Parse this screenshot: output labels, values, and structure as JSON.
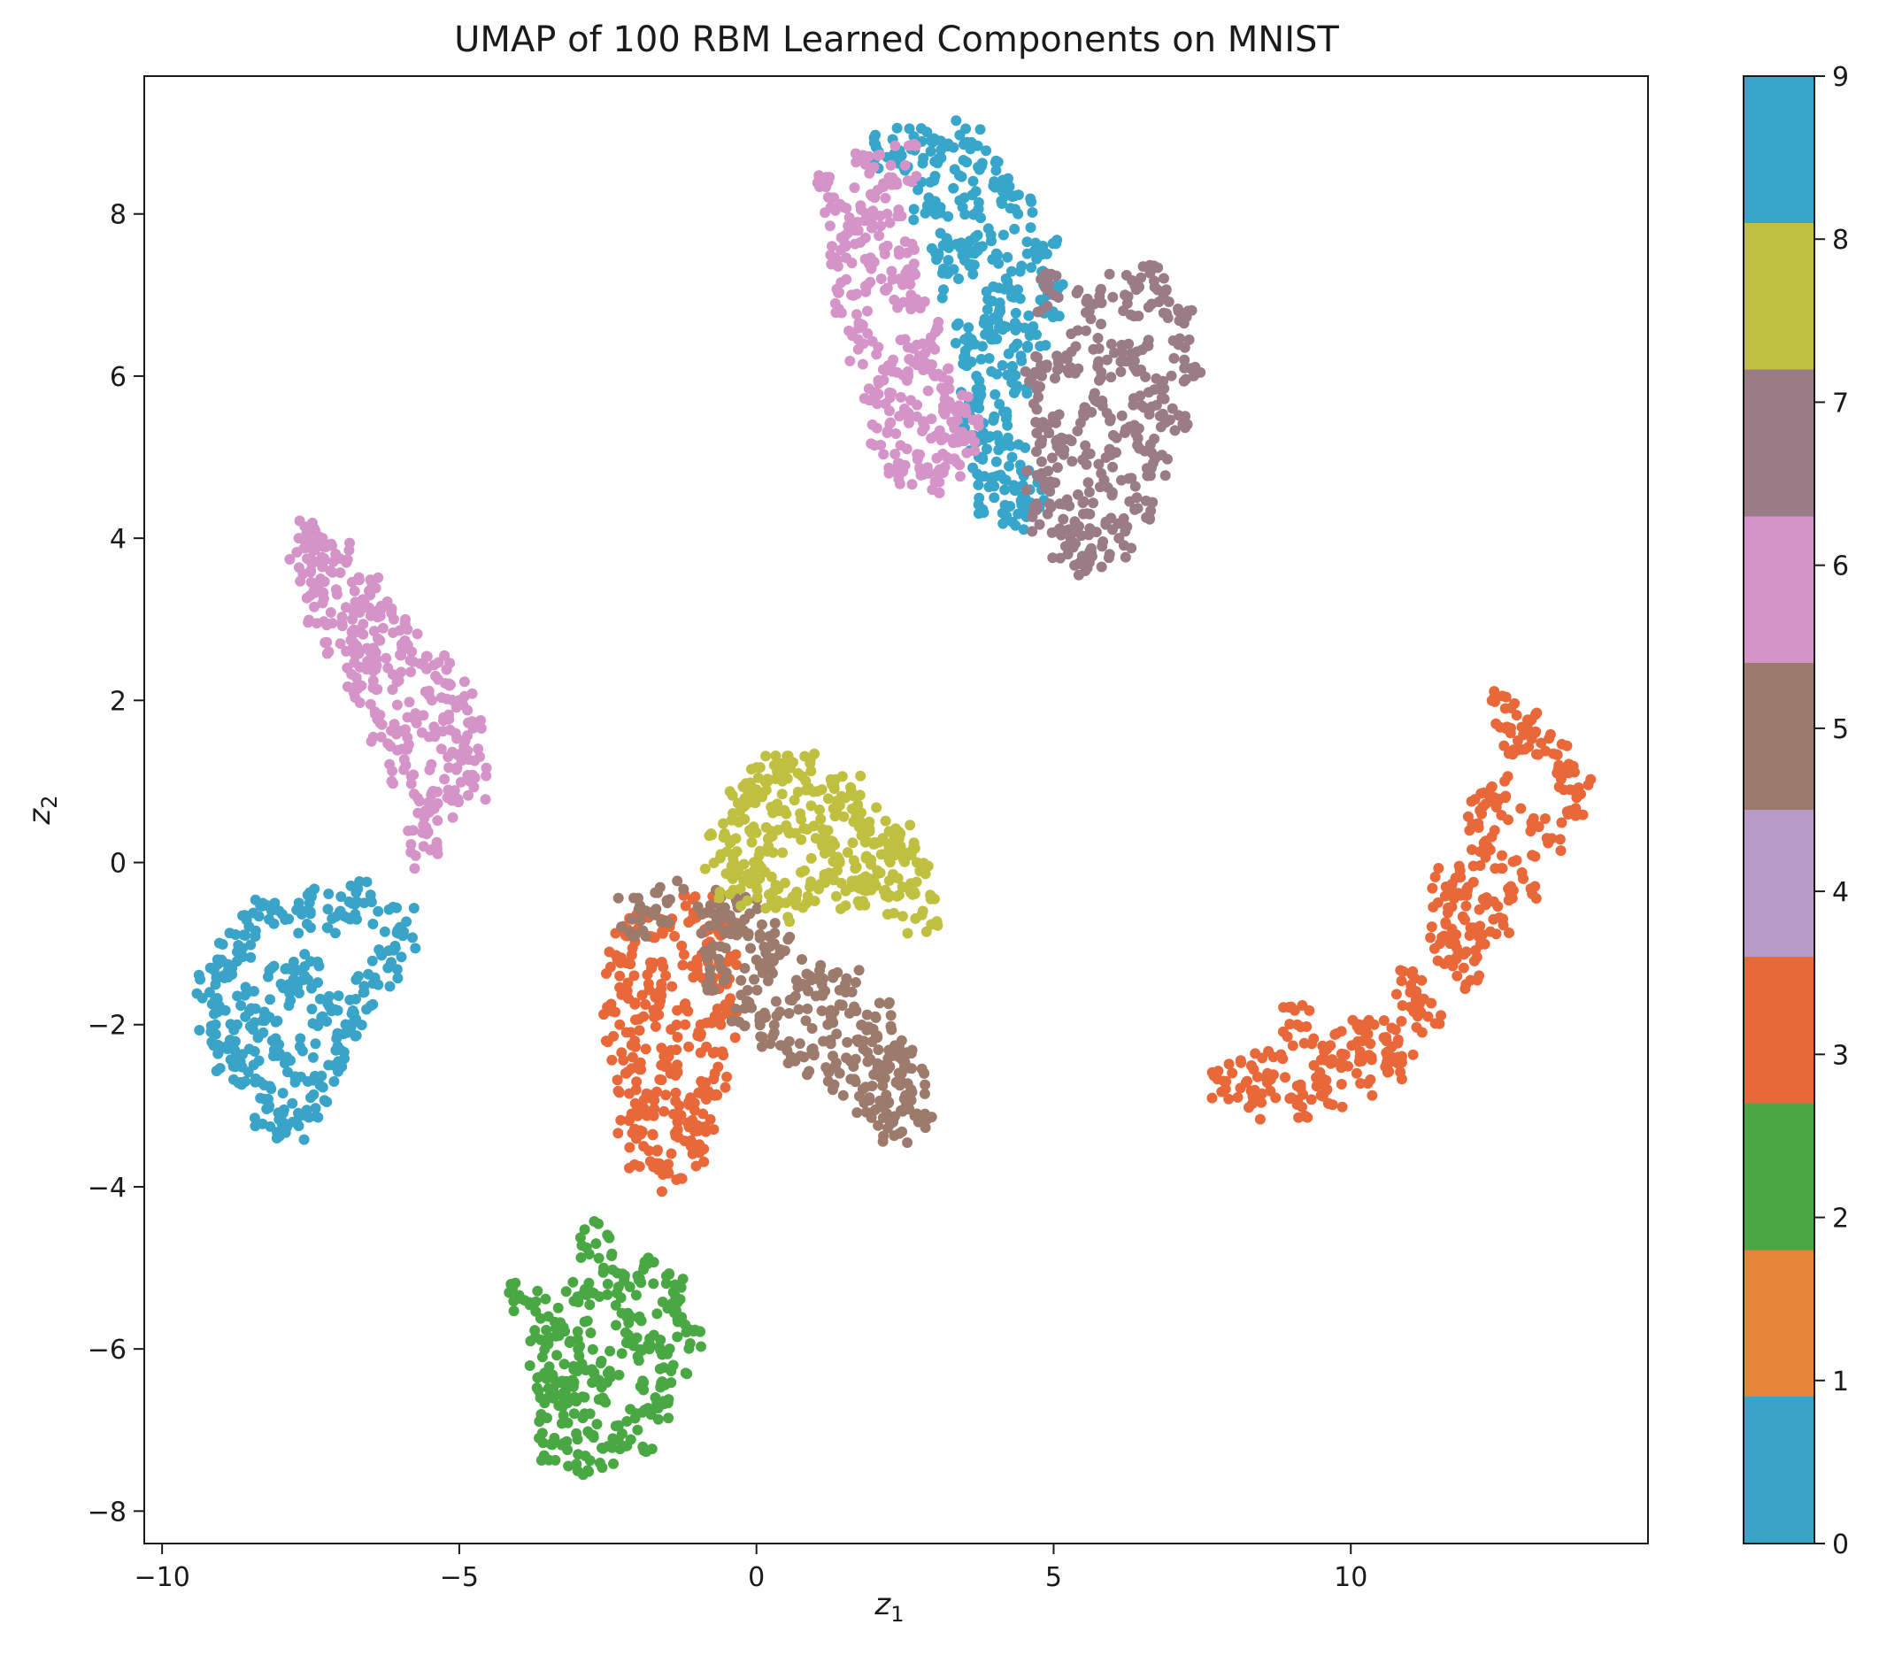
{
  "chart_data": {
    "type": "scatter",
    "title": "UMAP of 100 RBM Learned Components on MNIST",
    "xlabel": "z",
    "xlabel_sub": "1",
    "ylabel": "z",
    "ylabel_sub": "2",
    "xlim": [
      -10.3,
      15
    ],
    "ylim": [
      -8.4,
      9.7
    ],
    "xticks": [
      {
        "value": -10,
        "label": "−10"
      },
      {
        "value": -5,
        "label": "−5"
      },
      {
        "value": 0,
        "label": "0"
      },
      {
        "value": 5,
        "label": "5"
      },
      {
        "value": 10,
        "label": "10"
      }
    ],
    "yticks": [
      {
        "value": -8,
        "label": "−8"
      },
      {
        "value": -6,
        "label": "−6"
      },
      {
        "value": -4,
        "label": "−4"
      },
      {
        "value": -2,
        "label": "−2"
      },
      {
        "value": 0,
        "label": "0"
      },
      {
        "value": 2,
        "label": "2"
      },
      {
        "value": 4,
        "label": "4"
      },
      {
        "value": 6,
        "label": "6"
      },
      {
        "value": 8,
        "label": "8"
      }
    ],
    "grid": false,
    "colorbar": {
      "range": [
        0,
        9
      ],
      "ticks": [
        "0",
        "1",
        "2",
        "3",
        "4",
        "5",
        "6",
        "7",
        "8",
        "9"
      ],
      "colors": [
        "#3aa4c8",
        "#e8843a",
        "#4aa844",
        "#e8683a",
        "#b79ac8",
        "#9c7a6c",
        "#d494c8",
        "#9a7c86",
        "#c0c040",
        "#37a6ca"
      ]
    },
    "clusters": [
      {
        "label": 0,
        "color": "#3aa4c8",
        "points": [
          [
            -9.2,
            -1.6
          ],
          [
            -9.0,
            -1.2
          ],
          [
            -8.6,
            -0.9
          ],
          [
            -8.2,
            -0.7
          ],
          [
            -7.6,
            -0.6
          ],
          [
            -7.0,
            -0.6
          ],
          [
            -6.6,
            -0.5
          ],
          [
            -6.0,
            -0.8
          ],
          [
            -6.2,
            -1.3
          ],
          [
            -6.6,
            -1.6
          ],
          [
            -6.9,
            -2.1
          ],
          [
            -7.2,
            -2.5
          ],
          [
            -7.5,
            -2.9
          ],
          [
            -7.8,
            -3.2
          ],
          [
            -8.2,
            -3.0
          ],
          [
            -8.6,
            -2.7
          ],
          [
            -8.9,
            -2.3
          ],
          [
            -9.1,
            -2.0
          ],
          [
            -8.5,
            -1.8
          ],
          [
            -8.0,
            -1.5
          ],
          [
            -7.6,
            -1.4
          ],
          [
            -7.3,
            -1.9
          ],
          [
            -7.9,
            -2.4
          ],
          [
            -8.3,
            -2.1
          ]
        ]
      },
      {
        "label": 6,
        "color": "#d494c8",
        "points": [
          [
            -7.7,
            4.0
          ],
          [
            -7.3,
            3.9
          ],
          [
            -6.9,
            3.7
          ],
          [
            -6.5,
            3.3
          ],
          [
            -6.1,
            3.0
          ],
          [
            -5.8,
            2.6
          ],
          [
            -5.4,
            2.3
          ],
          [
            -5.0,
            2.0
          ],
          [
            -4.9,
            1.5
          ],
          [
            -4.8,
            1.0
          ],
          [
            -5.2,
            0.8
          ],
          [
            -5.6,
            0.6
          ],
          [
            -5.6,
            0.2
          ],
          [
            -5.9,
            1.2
          ],
          [
            -6.3,
            1.7
          ],
          [
            -6.7,
            2.2
          ],
          [
            -7.0,
            2.7
          ],
          [
            -7.3,
            3.2
          ],
          [
            -7.5,
            3.6
          ],
          [
            -6.8,
            3.0
          ],
          [
            -6.2,
            2.4
          ],
          [
            -5.7,
            1.8
          ],
          [
            -5.3,
            1.4
          ],
          [
            -6.5,
            2.6
          ]
        ]
      },
      {
        "label": 2,
        "color": "#4aa844",
        "points": [
          [
            -3.5,
            -5.6
          ],
          [
            -3.0,
            -5.4
          ],
          [
            -2.5,
            -5.2
          ],
          [
            -2.0,
            -5.1
          ],
          [
            -1.4,
            -5.3
          ],
          [
            -1.2,
            -5.7
          ],
          [
            -1.4,
            -6.2
          ],
          [
            -1.7,
            -6.6
          ],
          [
            -2.0,
            -7.0
          ],
          [
            -2.5,
            -7.2
          ],
          [
            -3.0,
            -7.3
          ],
          [
            -3.4,
            -7.1
          ],
          [
            -3.5,
            -6.6
          ],
          [
            -3.6,
            -6.1
          ],
          [
            -3.0,
            -6.0
          ],
          [
            -2.5,
            -6.3
          ],
          [
            -2.2,
            -5.8
          ],
          [
            -1.8,
            -6.0
          ],
          [
            -2.8,
            -6.8
          ],
          [
            -3.2,
            -6.4
          ],
          [
            -2.7,
            -4.7
          ],
          [
            -3.9,
            -5.4
          ]
        ]
      },
      {
        "label": 3,
        "color": "#e8683a",
        "points": [
          [
            -2.2,
            -0.9
          ],
          [
            -1.6,
            -0.7
          ],
          [
            -1.0,
            -0.6
          ],
          [
            -0.6,
            -0.9
          ],
          [
            -0.5,
            -1.5
          ],
          [
            -0.6,
            -2.0
          ],
          [
            -0.7,
            -2.6
          ],
          [
            -0.9,
            -3.1
          ],
          [
            -1.1,
            -3.5
          ],
          [
            -1.5,
            -3.8
          ],
          [
            -1.9,
            -3.5
          ],
          [
            -2.1,
            -3.1
          ],
          [
            -2.2,
            -2.6
          ],
          [
            -2.3,
            -2.0
          ],
          [
            -2.3,
            -1.4
          ],
          [
            -1.6,
            -1.5
          ],
          [
            -1.2,
            -2.0
          ],
          [
            -1.6,
            -2.5
          ],
          [
            -1.3,
            -3.0
          ],
          [
            -1.8,
            -2.9
          ],
          [
            -1.0,
            -1.2
          ],
          [
            -1.9,
            -1.9
          ]
        ]
      },
      {
        "label": 3,
        "color": "#e8683a",
        "points": [
          [
            7.9,
            -2.7
          ],
          [
            8.4,
            -2.9
          ],
          [
            9.0,
            -2.9
          ],
          [
            9.6,
            -2.8
          ],
          [
            10.1,
            -2.6
          ],
          [
            10.6,
            -2.2
          ],
          [
            11.0,
            -1.6
          ],
          [
            11.5,
            -1.0
          ],
          [
            11.9,
            -0.4
          ],
          [
            12.3,
            0.2
          ],
          [
            12.6,
            0.8
          ],
          [
            12.8,
            1.4
          ],
          [
            12.6,
            1.9
          ],
          [
            13.1,
            1.6
          ],
          [
            13.5,
            1.2
          ],
          [
            13.8,
            0.8
          ],
          [
            13.3,
            0.3
          ],
          [
            12.9,
            -0.2
          ],
          [
            12.4,
            -0.7
          ],
          [
            11.9,
            -1.3
          ],
          [
            11.3,
            -1.9
          ],
          [
            10.8,
            -2.4
          ],
          [
            10.2,
            -2.2
          ],
          [
            9.6,
            -2.3
          ],
          [
            9.1,
            -2.0
          ],
          [
            8.6,
            -2.6
          ],
          [
            12.0,
            -0.9
          ],
          [
            11.6,
            -0.3
          ],
          [
            12.2,
            0.6
          ]
        ]
      },
      {
        "label": 5,
        "color": "#9c7a6c",
        "points": [
          [
            -2.1,
            -0.7
          ],
          [
            -1.5,
            -0.5
          ],
          [
            -0.8,
            -0.6
          ],
          [
            -0.2,
            -0.7
          ],
          [
            0.3,
            -1.0
          ],
          [
            0.9,
            -1.4
          ],
          [
            1.5,
            -1.6
          ],
          [
            2.0,
            -1.9
          ],
          [
            2.4,
            -2.4
          ],
          [
            2.6,
            -2.8
          ],
          [
            2.7,
            -3.1
          ],
          [
            2.3,
            -3.2
          ],
          [
            1.9,
            -2.9
          ],
          [
            1.4,
            -2.6
          ],
          [
            0.8,
            -2.4
          ],
          [
            0.3,
            -2.1
          ],
          [
            -0.2,
            -1.8
          ],
          [
            -0.6,
            -1.3
          ],
          [
            0.0,
            -1.2
          ],
          [
            0.6,
            -1.7
          ],
          [
            1.2,
            -2.0
          ],
          [
            1.8,
            -2.3
          ],
          [
            -0.4,
            -0.8
          ],
          [
            2.1,
            -2.6
          ]
        ]
      },
      {
        "label": 8,
        "color": "#c0c040",
        "points": [
          [
            -0.6,
            0.1
          ],
          [
            -0.3,
            0.5
          ],
          [
            0.0,
            0.9
          ],
          [
            0.3,
            1.2
          ],
          [
            0.7,
            1.1
          ],
          [
            1.1,
            0.9
          ],
          [
            1.5,
            0.8
          ],
          [
            1.9,
            0.5
          ],
          [
            2.4,
            0.3
          ],
          [
            2.7,
            0.0
          ],
          [
            2.8,
            -0.6
          ],
          [
            2.4,
            -0.4
          ],
          [
            1.9,
            -0.2
          ],
          [
            1.4,
            0.0
          ],
          [
            0.9,
            -0.3
          ],
          [
            0.4,
            -0.5
          ],
          [
            0.0,
            -0.3
          ],
          [
            -0.4,
            -0.2
          ],
          [
            0.5,
            0.6
          ],
          [
            1.0,
            0.3
          ],
          [
            1.6,
            -0.3
          ],
          [
            2.1,
            0.1
          ],
          [
            0.2,
            0.2
          ],
          [
            -0.2,
            0.7
          ]
        ]
      },
      {
        "label": 9,
        "color": "#37a6ca",
        "points": [
          [
            2.2,
            8.7
          ],
          [
            2.6,
            8.8
          ],
          [
            3.1,
            8.9
          ],
          [
            3.6,
            8.8
          ],
          [
            4.0,
            8.4
          ],
          [
            4.4,
            8.0
          ],
          [
            4.8,
            7.5
          ],
          [
            4.9,
            7.0
          ],
          [
            4.6,
            6.5
          ],
          [
            4.3,
            6.0
          ],
          [
            4.0,
            5.5
          ],
          [
            4.3,
            5.0
          ],
          [
            4.6,
            4.6
          ],
          [
            4.4,
            4.3
          ],
          [
            4.0,
            4.5
          ],
          [
            3.8,
            5.0
          ],
          [
            3.6,
            5.5
          ],
          [
            3.7,
            6.0
          ],
          [
            3.9,
            6.6
          ],
          [
            3.4,
            7.2
          ],
          [
            3.2,
            7.7
          ],
          [
            2.9,
            8.2
          ],
          [
            3.5,
            8.2
          ],
          [
            4.2,
            7.2
          ],
          [
            3.8,
            7.6
          ],
          [
            4.1,
            6.8
          ],
          [
            3.6,
            6.4
          ]
        ]
      },
      {
        "label": 6,
        "color": "#d494c8",
        "points": [
          [
            1.3,
            8.2
          ],
          [
            1.5,
            7.6
          ],
          [
            1.6,
            7.0
          ],
          [
            1.8,
            6.4
          ],
          [
            2.0,
            5.8
          ],
          [
            2.2,
            5.3
          ],
          [
            2.5,
            4.9
          ],
          [
            2.9,
            4.8
          ],
          [
            3.2,
            5.0
          ],
          [
            3.5,
            5.2
          ],
          [
            3.3,
            5.6
          ],
          [
            3.0,
            6.0
          ],
          [
            2.8,
            6.4
          ],
          [
            2.6,
            7.0
          ],
          [
            2.4,
            7.5
          ],
          [
            2.2,
            8.0
          ],
          [
            1.9,
            8.5
          ],
          [
            2.5,
            8.6
          ],
          [
            2.1,
            7.2
          ],
          [
            2.3,
            6.2
          ],
          [
            1.7,
            7.9
          ],
          [
            2.7,
            5.5
          ]
        ]
      },
      {
        "label": 7,
        "color": "#9a7c86",
        "points": [
          [
            5.0,
            7.0
          ],
          [
            5.6,
            6.8
          ],
          [
            6.2,
            7.0
          ],
          [
            6.7,
            7.1
          ],
          [
            7.1,
            6.8
          ],
          [
            7.2,
            6.2
          ],
          [
            7.0,
            5.6
          ],
          [
            6.7,
            5.0
          ],
          [
            6.4,
            4.5
          ],
          [
            6.1,
            4.0
          ],
          [
            5.6,
            3.7
          ],
          [
            5.2,
            3.9
          ],
          [
            4.9,
            4.3
          ],
          [
            4.8,
            4.8
          ],
          [
            4.9,
            5.4
          ],
          [
            4.8,
            6.0
          ],
          [
            5.3,
            6.3
          ],
          [
            5.9,
            6.2
          ],
          [
            6.4,
            6.3
          ],
          [
            6.6,
            5.8
          ],
          [
            6.2,
            5.3
          ],
          [
            5.8,
            4.8
          ],
          [
            5.5,
            4.3
          ],
          [
            5.3,
            5.2
          ],
          [
            5.7,
            5.7
          ]
        ]
      }
    ]
  }
}
